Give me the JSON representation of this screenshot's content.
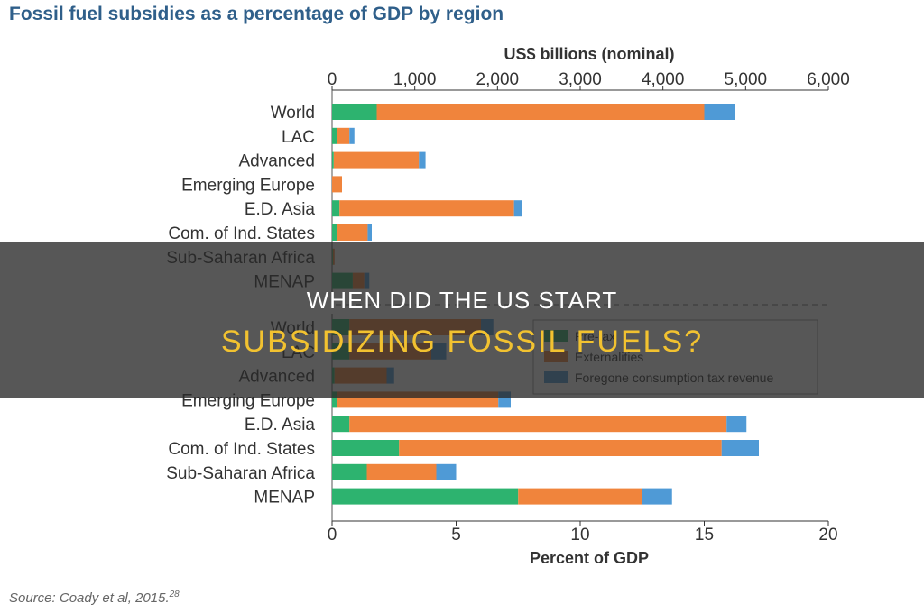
{
  "title": "Fossil fuel subsidies as a percentage of GDP by region",
  "source": {
    "text": "Source: Coady et al, 2015.",
    "ref": "28"
  },
  "overlay": {
    "line1": "WHEN DID THE US START",
    "line2": "SUBSIDIZING FOSSIL FUELS?"
  },
  "colors": {
    "pretax": "#2db36f",
    "externalities": "#f0843c",
    "foregone": "#4f9ad6"
  },
  "chart_data": [
    {
      "type": "bar",
      "orientation": "horizontal",
      "stacked": true,
      "xlabel": "US$ billions (nominal)",
      "xlim": [
        0,
        6000
      ],
      "xticks": [
        0,
        1000,
        2000,
        3000,
        4000,
        5000,
        6000
      ],
      "xtick_labels": [
        "0",
        "1,000",
        "2,000",
        "3,000",
        "4,000",
        "5,000",
        "6,000"
      ],
      "categories": [
        "World",
        "LAC",
        "Advanced",
        "Emerging Europe",
        "E.D. Asia",
        "Com. of Ind. States",
        "Sub-Saharan Africa",
        "MENAP"
      ],
      "series": [
        {
          "name": "Pre-tax",
          "values": [
            540,
            60,
            20,
            0,
            90,
            60,
            10,
            250
          ]
        },
        {
          "name": "Externalities",
          "values": [
            3960,
            150,
            1030,
            120,
            2110,
            370,
            20,
            140
          ]
        },
        {
          "name": "Foregone consumption tax revenue",
          "values": [
            370,
            60,
            80,
            0,
            100,
            50,
            0,
            60
          ]
        }
      ]
    },
    {
      "type": "bar",
      "orientation": "horizontal",
      "stacked": true,
      "xlabel": "Percent of GDP",
      "xlim": [
        0,
        20
      ],
      "xticks": [
        0,
        5,
        10,
        15,
        20
      ],
      "xtick_labels": [
        "0",
        "5",
        "10",
        "15",
        "20"
      ],
      "categories": [
        "World",
        "LAC",
        "Advanced",
        "Emerging Europe",
        "E.D. Asia",
        "Com. of Ind. States",
        "Sub-Saharan Africa",
        "MENAP"
      ],
      "series": [
        {
          "name": "Pre-tax",
          "values": [
            0.7,
            0.7,
            0.1,
            0.2,
            0.7,
            2.7,
            1.4,
            7.5
          ]
        },
        {
          "name": "Externalities",
          "values": [
            5.3,
            3.3,
            2.1,
            6.5,
            15.2,
            13.0,
            2.8,
            5.0
          ]
        },
        {
          "name": "Foregone consumption tax revenue",
          "values": [
            0.5,
            0.6,
            0.3,
            0.5,
            0.8,
            1.5,
            0.8,
            1.2
          ]
        }
      ],
      "legend": {
        "placement": "top-right",
        "entries": [
          "Pre-tax",
          "Externalities",
          "Foregone consumption tax revenue"
        ]
      }
    }
  ]
}
